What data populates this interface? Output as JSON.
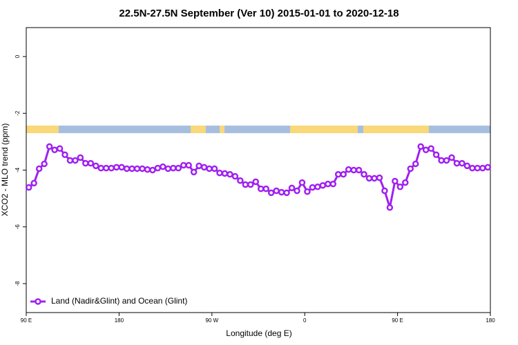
{
  "chart_data": {
    "type": "line",
    "title": "22.5N-27.5N September (Ver 10)   2015-01-01 to 2020-12-18",
    "x_label": "Longitude (deg E)",
    "y_label": "XCO2 - MLO trend (ppm)",
    "x": [
      92.5,
      97.5,
      102.5,
      107.5,
      112.5,
      117.5,
      122.5,
      127.5,
      132.5,
      137.5,
      142.5,
      147.5,
      152.5,
      157.5,
      162.5,
      167.5,
      172.5,
      177.5,
      182.5,
      187.5,
      192.5,
      197.5,
      202.5,
      207.5,
      212.5,
      217.5,
      222.5,
      227.5,
      232.5,
      237.5,
      242.5,
      247.5,
      252.5,
      257.5,
      262.5,
      267.5,
      272.5,
      277.5,
      282.5,
      287.5,
      292.5,
      297.5,
      302.5,
      307.5,
      312.5,
      317.5,
      322.5,
      327.5,
      332.5,
      337.5,
      342.5,
      347.5,
      352.5,
      357.5,
      362.5,
      367.5,
      372.5,
      377.5,
      382.5,
      387.5,
      392.5,
      397.5,
      402.5,
      407.5,
      412.5,
      417.5,
      422.5,
      427.5,
      432.5,
      437.5,
      442.5,
      447.5,
      452.5,
      457.5,
      462.5,
      467.5,
      472.5,
      477.5,
      482.5,
      487.5,
      492.5,
      497.5,
      502.5,
      507.5,
      512.5,
      517.5,
      522.5,
      527.5,
      532.5,
      537.5
    ],
    "series": [
      {
        "name": "Land (Nadir&Glint) and Ocean (Glint)",
        "color": "#a020f0",
        "values": [
          -4.61,
          -4.46,
          -3.95,
          -3.78,
          -3.17,
          -3.29,
          -3.24,
          -3.46,
          -3.66,
          -3.66,
          -3.56,
          -3.76,
          -3.76,
          -3.85,
          -3.93,
          -3.93,
          -3.93,
          -3.9,
          -3.9,
          -3.95,
          -3.95,
          -3.95,
          -3.95,
          -3.98,
          -4.0,
          -3.93,
          -3.88,
          -3.95,
          -3.93,
          -3.93,
          -3.83,
          -3.83,
          -4.07,
          -3.85,
          -3.9,
          -3.95,
          -3.95,
          -4.1,
          -4.12,
          -4.15,
          -4.22,
          -4.37,
          -4.51,
          -4.51,
          -4.41,
          -4.66,
          -4.66,
          -4.8,
          -4.73,
          -4.78,
          -4.8,
          -4.63,
          -4.73,
          -4.44,
          -4.76,
          -4.61,
          -4.59,
          -4.54,
          -4.49,
          -4.49,
          -4.15,
          -4.15,
          -3.98,
          -4.0,
          -4.0,
          -4.15,
          -4.29,
          -4.29,
          -4.27,
          -4.73,
          -5.32,
          -4.39,
          -4.59,
          -4.44,
          -3.95,
          -3.78,
          -3.17,
          -3.29,
          -3.24,
          -3.46,
          -3.66,
          -3.66,
          -3.56,
          -3.76,
          -3.76,
          -3.85,
          -3.93,
          -3.93,
          -3.93,
          -3.9
        ]
      }
    ],
    "xlim": [
      90,
      540
    ],
    "xticks": [
      {
        "value": 90,
        "label": "90 E"
      },
      180,
      {
        "value": 270,
        "label": "90 W"
      },
      {
        "value": 360,
        "label": "0"
      },
      {
        "value": 450,
        "label": "90 E"
      },
      {
        "value": 540,
        "label": "180"
      }
    ],
    "ylim": [
      -9.02,
      1.02
    ],
    "yticks": [
      0,
      -2,
      -4,
      -6,
      -8
    ],
    "legend": "bottomleft"
  }
}
